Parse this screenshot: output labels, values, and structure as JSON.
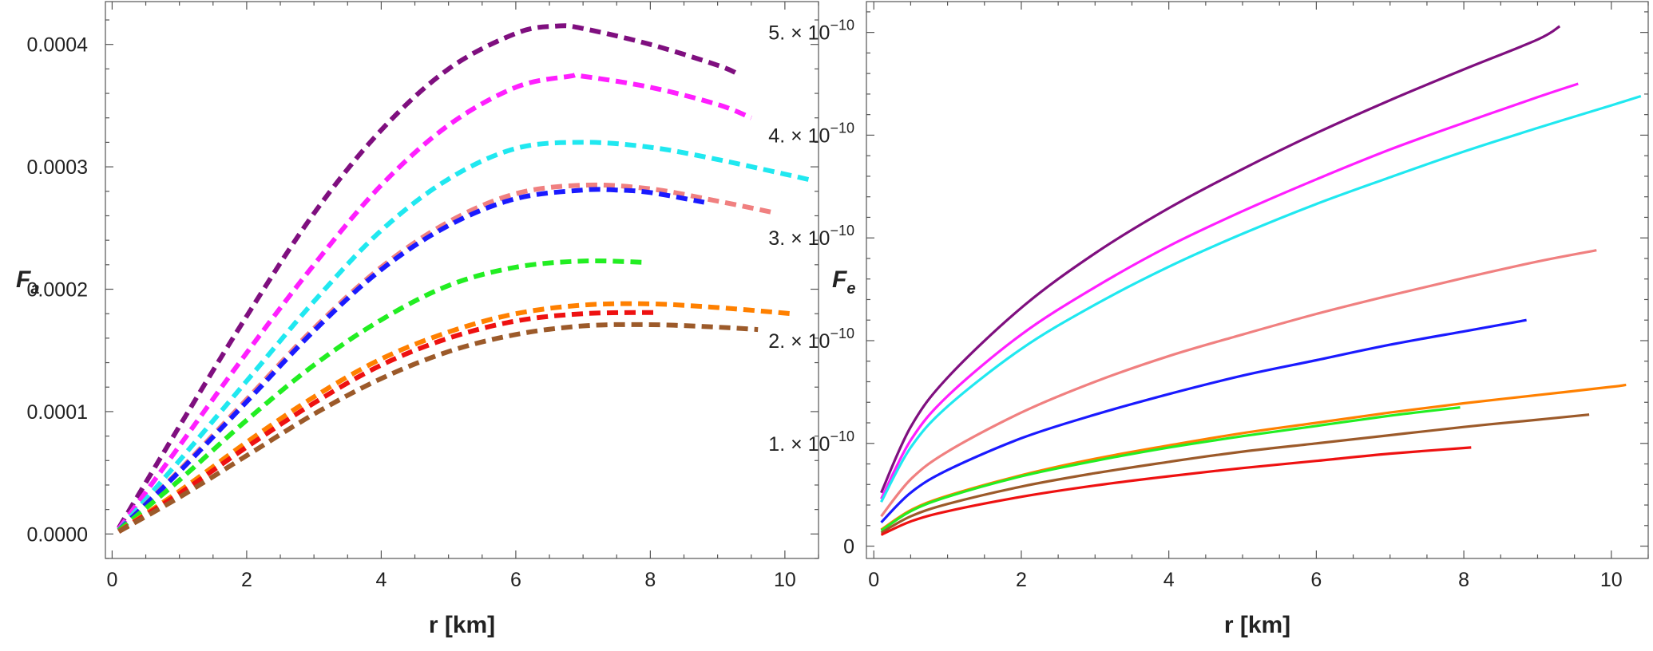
{
  "chart_data": [
    {
      "type": "line",
      "line_style": "dashed",
      "ylabel": "F",
      "ylabel_sub": "a",
      "xlabel": "r [km]",
      "xlim": [
        -0.1,
        10.5
      ],
      "ylim": [
        -2e-05,
        0.000435
      ],
      "x_ticks": [
        "0",
        "2",
        "4",
        "6",
        "8",
        "10"
      ],
      "x_tick_values": [
        0,
        2,
        4,
        6,
        8,
        10
      ],
      "y_ticks": [
        "0.0000",
        "0.0001",
        "0.0002",
        "0.0003",
        "0.0004"
      ],
      "y_tick_values": [
        0,
        0.0001,
        0.0002,
        0.0003,
        0.0004
      ],
      "frame": true,
      "grid": false,
      "series": [
        {
          "color": "#7f0f7f",
          "x": [
            0.1,
            1,
            2,
            3,
            4,
            5,
            6,
            6.6,
            7,
            8,
            9,
            9.3
          ],
          "y": [
            5e-06,
            8.8e-05,
            0.000178,
            0.000262,
            0.00033,
            0.00038,
            0.000409,
            0.000415,
            0.000413,
            0.0004,
            0.000383,
            0.000376
          ]
        },
        {
          "color": "#ff1fff",
          "x": [
            0.1,
            1,
            2,
            3,
            4,
            5,
            6,
            6.8,
            7,
            8,
            9,
            9.5
          ],
          "y": [
            4e-06,
            7.2e-05,
            0.000148,
            0.00022,
            0.000285,
            0.000334,
            0.000365,
            0.000374,
            0.000374,
            0.000365,
            0.000351,
            0.00034
          ]
        },
        {
          "color": "#20e8f0",
          "x": [
            0.1,
            1,
            2,
            3,
            4,
            5,
            6,
            7,
            8,
            9,
            10,
            10.4
          ],
          "y": [
            3e-06,
            6e-05,
            0.000125,
            0.00019,
            0.000248,
            0.00029,
            0.000315,
            0.00032,
            0.000316,
            0.000306,
            0.000294,
            0.000289
          ]
        },
        {
          "color": "#f08080",
          "x": [
            0.1,
            1,
            2,
            3,
            4,
            5,
            6,
            7,
            8,
            9,
            9.8
          ],
          "y": [
            3e-06,
            5.2e-05,
            0.00011,
            0.000168,
            0.000218,
            0.000255,
            0.000278,
            0.000285,
            0.000282,
            0.000272,
            0.000263
          ]
        },
        {
          "color": "#1a1aff",
          "x": [
            0.1,
            1,
            2,
            3,
            4,
            5,
            6,
            7,
            7.5,
            8,
            8.8
          ],
          "y": [
            3e-06,
            5.1e-05,
            0.000108,
            0.000166,
            0.000216,
            0.000252,
            0.000274,
            0.000281,
            0.000281,
            0.000279,
            0.000271
          ]
        },
        {
          "color": "#22ee22",
          "x": [
            0.1,
            1,
            2,
            3,
            4,
            5,
            6,
            7,
            7.9
          ],
          "y": [
            3e-06,
            4.4e-05,
            9.3e-05,
            0.000138,
            0.000175,
            0.000203,
            0.000218,
            0.000223,
            0.000222
          ]
        },
        {
          "color": "#ff8000",
          "x": [
            0.1,
            1,
            2,
            3,
            4,
            5,
            6,
            7,
            8,
            9,
            10.1
          ],
          "y": [
            2e-06,
            3.5e-05,
            7.5e-05,
            0.000112,
            0.000143,
            0.000165,
            0.00018,
            0.000187,
            0.000188,
            0.000185,
            0.00018
          ]
        },
        {
          "color": "#ee1111",
          "x": [
            0.1,
            1,
            2,
            3,
            4,
            5,
            6,
            7,
            8.1
          ],
          "y": [
            2e-06,
            3.3e-05,
            7.1e-05,
            0.000107,
            0.000138,
            0.00016,
            0.000174,
            0.00018,
            0.000181
          ]
        },
        {
          "color": "#9c5a2a",
          "x": [
            0.1,
            1,
            2,
            3,
            4,
            5,
            6,
            7,
            8,
            9,
            9.6
          ],
          "y": [
            2e-06,
            3e-05,
            6.4e-05,
            9.8e-05,
            0.000127,
            0.000149,
            0.000163,
            0.00017,
            0.000171,
            0.000169,
            0.000167
          ]
        }
      ]
    },
    {
      "type": "line",
      "line_style": "solid",
      "ylabel": "F",
      "ylabel_sub": "e",
      "xlabel": "r [km]",
      "xlim": [
        -0.1,
        10.5
      ],
      "ylim": [
        -1.2e-11,
        5.3e-10
      ],
      "x_ticks": [
        "0",
        "2",
        "4",
        "6",
        "8",
        "10"
      ],
      "x_tick_values": [
        0,
        2,
        4,
        6,
        8,
        10
      ],
      "y_ticks": [
        "0",
        "1.",
        "2.",
        "3.",
        "4.",
        "5."
      ],
      "y_tick_values": [
        0,
        1e-10,
        2e-10,
        3e-10,
        4e-10,
        5e-10
      ],
      "y_tick_suffix": "× 10",
      "y_tick_exponent": "−10",
      "frame": true,
      "grid": false,
      "series": [
        {
          "color": "#7f0f7f",
          "x": [
            0.1,
            0.5,
            1,
            2,
            3,
            4,
            5,
            6,
            7,
            8,
            9,
            9.3
          ],
          "y": [
            5.2e-11,
            1.16e-10,
            1.64e-10,
            2.32e-10,
            2.85e-10,
            3.29e-10,
            3.67e-10,
            4.02e-10,
            4.34e-10,
            4.64e-10,
            4.93e-10,
            5.06e-10
          ]
        },
        {
          "color": "#ff1fff",
          "x": [
            0.1,
            0.5,
            1,
            2,
            3,
            4,
            5,
            6,
            7,
            8,
            9,
            9.55
          ],
          "y": [
            4.6e-11,
            1.03e-10,
            1.46e-10,
            2.06e-10,
            2.52e-10,
            2.92e-10,
            3.26e-10,
            3.57e-10,
            3.86e-10,
            4.12e-10,
            4.37e-10,
            4.5e-10
          ]
        },
        {
          "color": "#20e8f0",
          "x": [
            0.1,
            0.5,
            1,
            2,
            3,
            4,
            5,
            6,
            7,
            8,
            9,
            10,
            10.4
          ],
          "y": [
            4.3e-11,
            9.6e-11,
            1.36e-10,
            1.92e-10,
            2.35e-10,
            2.72e-10,
            3.04e-10,
            3.33e-10,
            3.59e-10,
            3.84e-10,
            4.07e-10,
            4.29e-10,
            4.38e-10
          ]
        },
        {
          "color": "#f08080",
          "x": [
            0.1,
            0.5,
            1,
            2,
            3,
            4,
            5,
            6,
            7,
            8,
            9,
            9.8
          ],
          "y": [
            2.9e-11,
            6.5e-11,
            9.2e-11,
            1.3e-10,
            1.6e-10,
            1.85e-10,
            2.06e-10,
            2.26e-10,
            2.44e-10,
            2.61e-10,
            2.77e-10,
            2.88e-10
          ]
        },
        {
          "color": "#1a1aff",
          "x": [
            0.1,
            0.5,
            1,
            2,
            3,
            4,
            5,
            6,
            7,
            8,
            8.85
          ],
          "y": [
            2.3e-11,
            5.2e-11,
            7.4e-11,
            1.05e-10,
            1.28e-10,
            1.48e-10,
            1.66e-10,
            1.81e-10,
            1.96e-10,
            2.09e-10,
            2.2e-10
          ]
        },
        {
          "color": "#ff8000",
          "x": [
            0.1,
            0.5,
            1,
            2,
            3,
            4,
            5,
            6,
            7,
            8,
            9,
            10,
            10.2
          ],
          "y": [
            1.6e-11,
            3.5e-11,
            4.9e-11,
            6.9e-11,
            8.5e-11,
            9.8e-11,
            1.1e-10,
            1.2e-10,
            1.3e-10,
            1.39e-10,
            1.47e-10,
            1.55e-10,
            1.57e-10
          ]
        },
        {
          "color": "#22ee22",
          "x": [
            0.1,
            0.5,
            1,
            2,
            3,
            4,
            5,
            6,
            7,
            7.95
          ],
          "y": [
            1.5e-11,
            3.4e-11,
            4.8e-11,
            6.8e-11,
            8.3e-11,
            9.6e-11,
            1.07e-10,
            1.17e-10,
            1.27e-10,
            1.35e-10
          ]
        },
        {
          "color": "#9c5a2a",
          "x": [
            0.1,
            0.5,
            1,
            2,
            3,
            4,
            5,
            6,
            7,
            8,
            9,
            9.7
          ],
          "y": [
            1.3e-11,
            2.9e-11,
            4.1e-11,
            5.8e-11,
            7.1e-11,
            8.2e-11,
            9.2e-11,
            1e-10,
            1.08e-10,
            1.16e-10,
            1.23e-10,
            1.28e-10
          ]
        },
        {
          "color": "#ee1111",
          "x": [
            0.1,
            0.5,
            1,
            2,
            3,
            4,
            5,
            6,
            7,
            8.1
          ],
          "y": [
            1.1e-11,
            2.4e-11,
            3.4e-11,
            4.8e-11,
            5.9e-11,
            6.8e-11,
            7.6e-11,
            8.3e-11,
            9e-11,
            9.6e-11
          ]
        }
      ]
    }
  ]
}
